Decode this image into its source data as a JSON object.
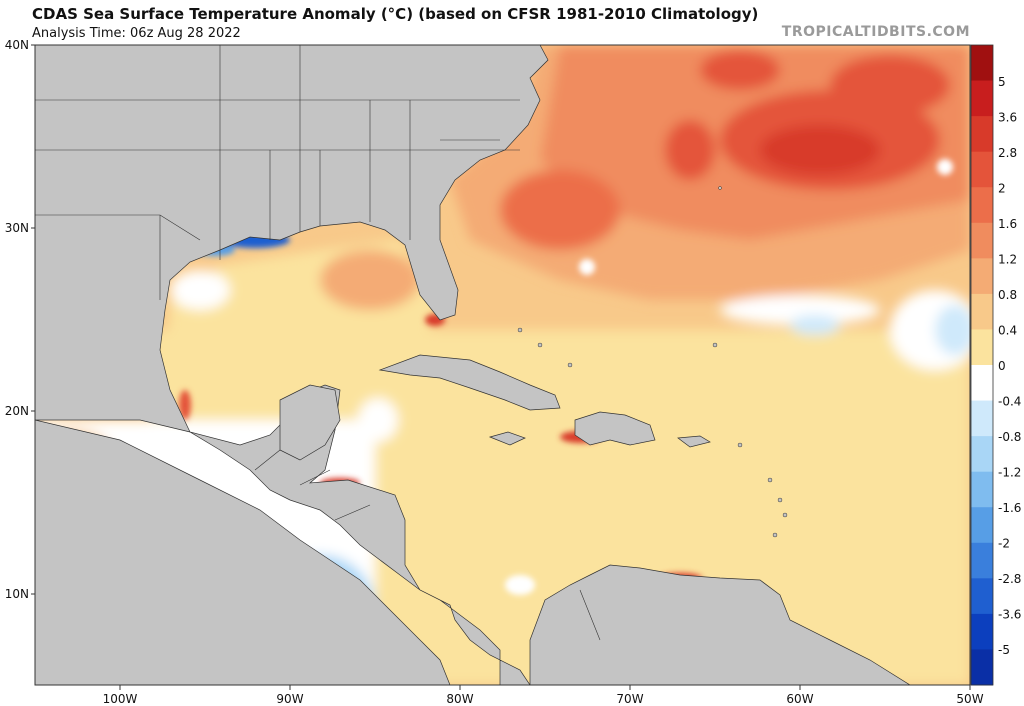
{
  "header": {
    "title": "CDAS Sea Surface Temperature Anomaly (°C) (based on CFSR 1981-2010 Climatology)",
    "analysis_time": "Analysis Time: 06z Aug 28 2022",
    "credit": "TROPICALTIDBITS.COM"
  },
  "axes": {
    "lat_ticks": [
      "40N",
      "30N",
      "20N",
      "10N"
    ],
    "lon_ticks": [
      "100W",
      "90W",
      "80W",
      "70W",
      "60W",
      "50W"
    ]
  },
  "colorbar": {
    "labels": [
      "5",
      "3.6",
      "2.8",
      "2",
      "1.6",
      "1.2",
      "0.8",
      "0.4",
      "0",
      "-0.4",
      "-0.8",
      "-1.2",
      "-1.6",
      "-2",
      "-2.8",
      "-3.6",
      "-5"
    ],
    "colors": [
      "#a01010",
      "#c81e1e",
      "#d83a2a",
      "#e4543a",
      "#ec6e4a",
      "#f08c5e",
      "#f4ab74",
      "#f8c98a",
      "#fbe39e",
      "#ffffff",
      "#cfe9fb",
      "#a9d6f6",
      "#7fbcef",
      "#579ee6",
      "#3a7fdc",
      "#1f5fd0",
      "#0c3fbe",
      "#0a2fa6"
    ]
  },
  "map_colors": {
    "land": "#c4c4c4",
    "border": "#333333",
    "ocean_base": "#f6b67c"
  }
}
